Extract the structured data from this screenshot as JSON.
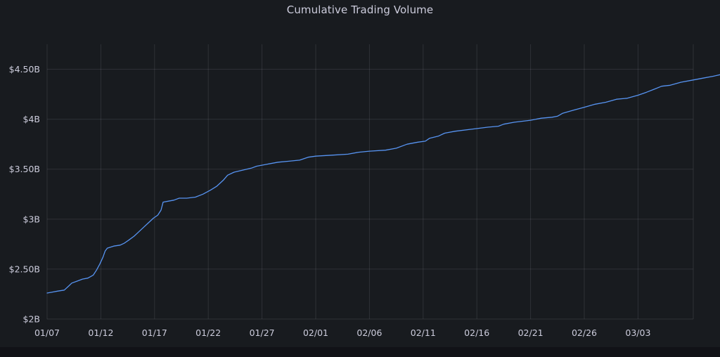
{
  "chart_data": {
    "type": "line",
    "title": "Cumulative Trading Volume",
    "xlabel": "",
    "ylabel": "",
    "x_ticks": [
      "01/07",
      "01/12",
      "01/17",
      "01/22",
      "01/27",
      "02/01",
      "02/06",
      "02/11",
      "02/16",
      "02/21",
      "02/26",
      "03/03"
    ],
    "y_ticks": [
      {
        "value": 2.0,
        "label": "$2B"
      },
      {
        "value": 2.5,
        "label": "$2.50B"
      },
      {
        "value": 3.0,
        "label": "$3B"
      },
      {
        "value": 3.5,
        "label": "$3.50B"
      },
      {
        "value": 4.0,
        "label": "$4B"
      },
      {
        "value": 4.5,
        "label": "$4.50B"
      }
    ],
    "ylim": [
      2.0,
      4.75
    ],
    "xlim_days": [
      0,
      60
    ],
    "grid": true,
    "line_color": "#5794f2",
    "series": [
      {
        "values": [
          [
            0,
            2.26
          ],
          [
            0.5,
            2.27
          ],
          [
            1.0,
            2.28
          ],
          [
            1.6,
            2.29
          ],
          [
            2.0,
            2.33
          ],
          [
            2.3,
            2.36
          ],
          [
            2.8,
            2.38
          ],
          [
            3.3,
            2.4
          ],
          [
            3.8,
            2.41
          ],
          [
            4.3,
            2.44
          ],
          [
            4.6,
            2.49
          ],
          [
            4.9,
            2.55
          ],
          [
            5.2,
            2.62
          ],
          [
            5.4,
            2.68
          ],
          [
            5.6,
            2.71
          ],
          [
            6.2,
            2.73
          ],
          [
            6.8,
            2.74
          ],
          [
            7.2,
            2.76
          ],
          [
            7.6,
            2.79
          ],
          [
            8.1,
            2.83
          ],
          [
            8.5,
            2.87
          ],
          [
            9.0,
            2.92
          ],
          [
            9.4,
            2.96
          ],
          [
            9.9,
            3.01
          ],
          [
            10.3,
            3.04
          ],
          [
            10.6,
            3.09
          ],
          [
            10.8,
            3.17
          ],
          [
            11.3,
            3.18
          ],
          [
            11.8,
            3.19
          ],
          [
            12.3,
            3.21
          ],
          [
            13.0,
            3.21
          ],
          [
            13.8,
            3.22
          ],
          [
            14.5,
            3.25
          ],
          [
            15.2,
            3.29
          ],
          [
            15.8,
            3.33
          ],
          [
            16.4,
            3.39
          ],
          [
            16.8,
            3.44
          ],
          [
            17.4,
            3.47
          ],
          [
            18.2,
            3.49
          ],
          [
            19.0,
            3.51
          ],
          [
            19.5,
            3.53
          ],
          [
            20.5,
            3.55
          ],
          [
            21.5,
            3.57
          ],
          [
            22.5,
            3.58
          ],
          [
            23.5,
            3.59
          ],
          [
            24.3,
            3.62
          ],
          [
            25.0,
            3.63
          ],
          [
            26.5,
            3.64
          ],
          [
            28.0,
            3.65
          ],
          [
            29.0,
            3.67
          ],
          [
            30.0,
            3.68
          ],
          [
            31.5,
            3.69
          ],
          [
            32.5,
            3.71
          ],
          [
            33.5,
            3.75
          ],
          [
            34.5,
            3.77
          ],
          [
            35.2,
            3.78
          ],
          [
            35.6,
            3.81
          ],
          [
            36.4,
            3.83
          ],
          [
            37.0,
            3.86
          ],
          [
            38.0,
            3.88
          ],
          [
            39.5,
            3.9
          ],
          [
            41.0,
            3.92
          ],
          [
            42.0,
            3.93
          ],
          [
            42.5,
            3.95
          ],
          [
            43.5,
            3.97
          ],
          [
            45.0,
            3.99
          ],
          [
            46.0,
            4.01
          ],
          [
            47.0,
            4.02
          ],
          [
            47.5,
            4.03
          ],
          [
            48.0,
            4.06
          ],
          [
            49.0,
            4.09
          ],
          [
            50.0,
            4.12
          ],
          [
            51.0,
            4.15
          ],
          [
            52.0,
            4.17
          ],
          [
            53.0,
            4.2
          ],
          [
            54.0,
            4.21
          ],
          [
            55.0,
            4.24
          ],
          [
            55.8,
            4.27
          ],
          [
            56.5,
            4.3
          ],
          [
            57.2,
            4.33
          ],
          [
            58.0,
            4.34
          ],
          [
            59.0,
            4.37
          ],
          [
            60.0,
            4.39
          ],
          [
            61.0,
            4.41
          ],
          [
            62.0,
            4.43
          ],
          [
            62.8,
            4.45
          ]
        ]
      }
    ]
  }
}
